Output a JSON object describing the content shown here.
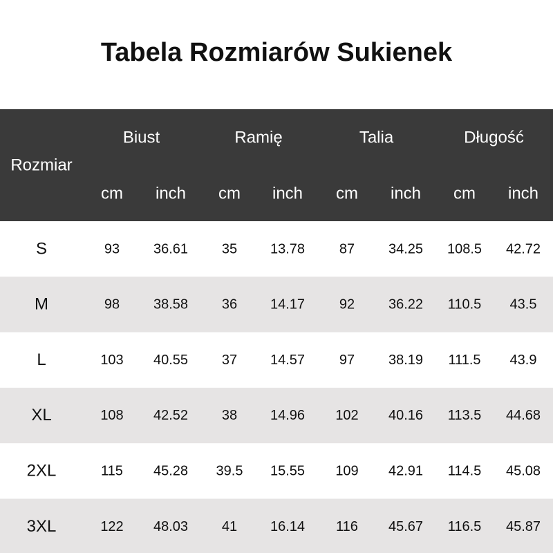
{
  "title": "Tabela Rozmiarów Sukienek",
  "table": {
    "header": {
      "size": "Rozmiar",
      "groups": [
        {
          "name": "Biust",
          "units": [
            "cm",
            "inch"
          ]
        },
        {
          "name": "Ramię",
          "units": [
            "cm",
            "inch"
          ]
        },
        {
          "name": "Talia",
          "units": [
            "cm",
            "inch"
          ]
        },
        {
          "name": "Długość",
          "units": [
            "cm",
            "inch"
          ]
        }
      ]
    },
    "rows": [
      [
        "S",
        "93",
        "36.61",
        "35",
        "13.78",
        "87",
        "34.25",
        "108.5",
        "42.72"
      ],
      [
        "M",
        "98",
        "38.58",
        "36",
        "14.17",
        "92",
        "36.22",
        "110.5",
        "43.5"
      ],
      [
        "L",
        "103",
        "40.55",
        "37",
        "14.57",
        "97",
        "38.19",
        "111.5",
        "43.9"
      ],
      [
        "XL",
        "108",
        "42.52",
        "38",
        "14.96",
        "102",
        "40.16",
        "113.5",
        "44.68"
      ],
      [
        "2XL",
        "115",
        "45.28",
        "39.5",
        "15.55",
        "109",
        "42.91",
        "114.5",
        "45.08"
      ],
      [
        "3XL",
        "122",
        "48.03",
        "41",
        "16.14",
        "116",
        "45.67",
        "116.5",
        "45.87"
      ]
    ]
  }
}
